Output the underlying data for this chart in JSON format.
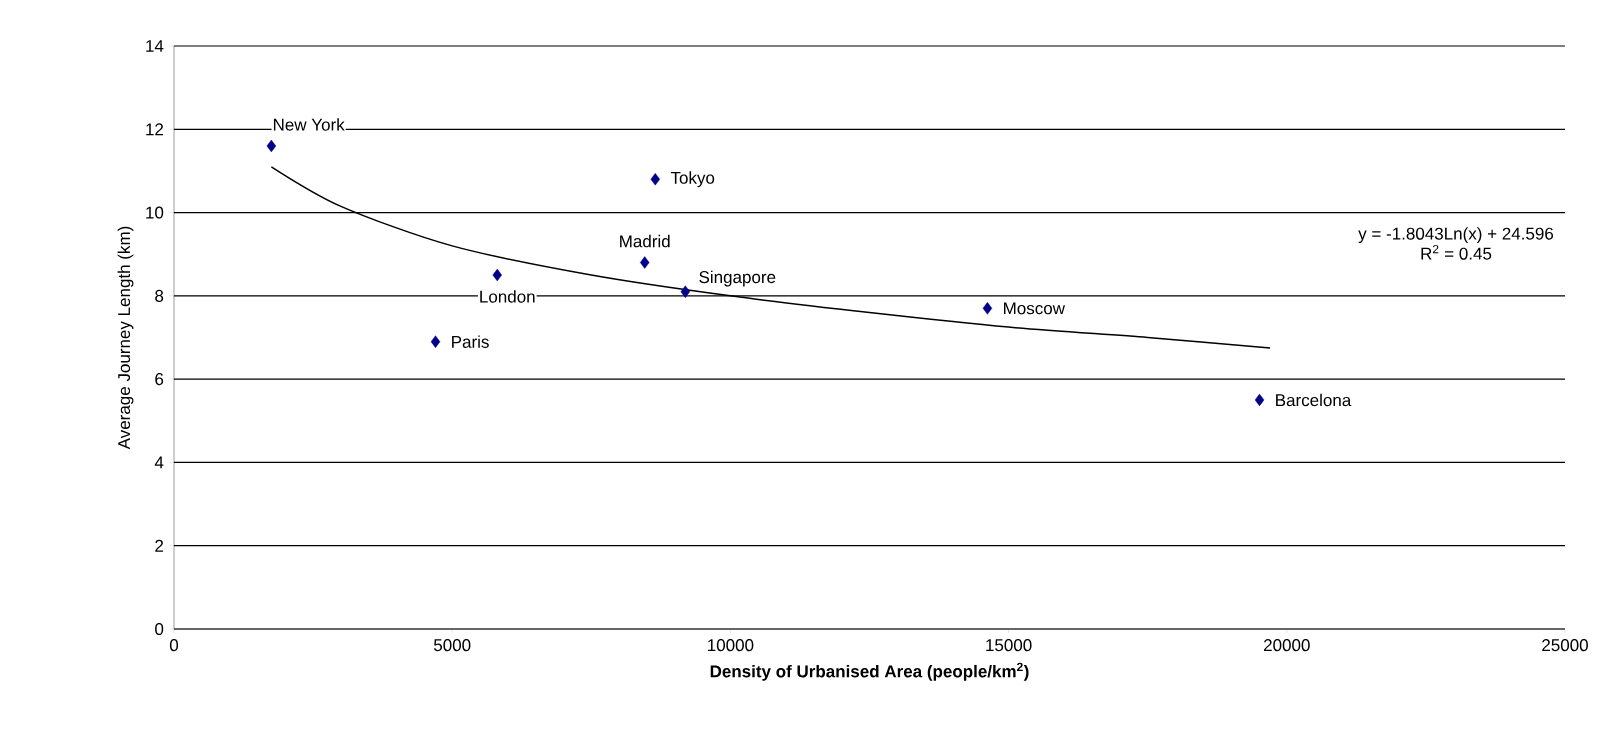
{
  "chart_data": {
    "type": "scatter",
    "xlabel": "Density of Urbanised Area (people/km$^{2}$)",
    "ylabel": "Average Journey Length (km)",
    "xlim": [
      0,
      25000
    ],
    "xticks": [
      0,
      5000,
      10000,
      15000,
      20000,
      25000
    ],
    "ylim": [
      0,
      14
    ],
    "yticks": [
      0,
      2,
      4,
      6,
      8,
      10,
      12,
      14
    ],
    "grid": "y",
    "marker": "diamond",
    "series": [
      {
        "color": "#00008b",
        "x": [
          1750,
          8650,
          8460,
          5810,
          9190,
          4700,
          14620,
          19510
        ],
        "values": [
          11.6,
          10.8,
          8.8,
          8.5,
          8.1,
          6.9,
          7.7,
          5.5
        ]
      },
      {
        "type": "line",
        "color": "#000000",
        "marker": "none",
        "x": [
          1750,
          3000,
          5000,
          7500,
          10000,
          12500,
          15000,
          17500,
          19700
        ],
        "values": [
          11.1,
          10.15,
          9.2,
          8.5,
          8.0,
          7.6,
          7.25,
          7.0,
          6.75
        ]
      }
    ],
    "annotations": [
      {
        "text": "New York",
        "x": 1750,
        "y": 11.6
      },
      {
        "text": "Tokyo",
        "x": 8650,
        "y": 10.8
      },
      {
        "text": "Madrid",
        "x": 8460,
        "y": 8.8
      },
      {
        "text": "London",
        "x": 5810,
        "y": 8.5
      },
      {
        "text": "Singapore",
        "x": 9190,
        "y": 8.1
      },
      {
        "text": "Paris",
        "x": 4700,
        "y": 6.9
      },
      {
        "text": "Moscow",
        "x": 14620,
        "y": 7.7
      },
      {
        "text": "Barcelona",
        "x": 19510,
        "y": 5.5
      },
      "y = -1.8043Ln(x) + 24.596",
      "R$^{2}$ = 0.45"
    ]
  }
}
